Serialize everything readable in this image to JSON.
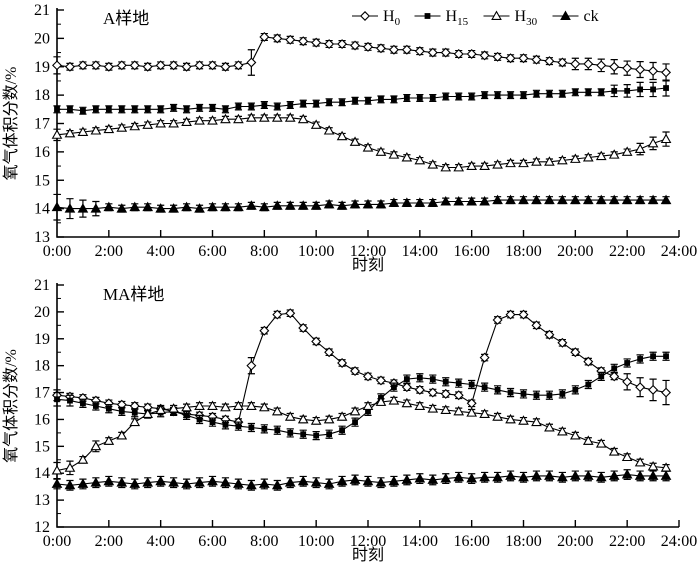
{
  "figure": {
    "background": "#ffffff",
    "line_color": "#000000"
  },
  "chart_data": [
    {
      "type": "line",
      "title": "A样地",
      "xlabel": "时刻",
      "ylabel": "氧气体积分数/%",
      "ylim": [
        13,
        21
      ],
      "yticks": [
        13,
        14,
        15,
        16,
        17,
        18,
        19,
        20,
        21
      ],
      "x_hours_range": [
        0,
        24
      ],
      "x_step_hours": 0.5,
      "x_tick_labels": [
        "0:00",
        "2:00",
        "4:00",
        "6:00",
        "8:00",
        "10:00",
        "12:00",
        "14:00",
        "16:00",
        "18:00",
        "20:00",
        "22:00",
        "24:00"
      ],
      "grid": false,
      "legend_position": "top-right",
      "legend": [
        {
          "label": "H",
          "sub": "0",
          "marker": "diamond-open"
        },
        {
          "label": "H",
          "sub": "15",
          "marker": "square-filled"
        },
        {
          "label": "H",
          "sub": "30",
          "marker": "triangle-open"
        },
        {
          "label": "ck",
          "sub": "",
          "marker": "triangle-filled"
        }
      ],
      "series": [
        {
          "name": "H0",
          "marker": "diamond-open",
          "err": 0.12,
          "err_overrides": {
            "0": 0.3,
            "15": 0.45,
            "40": 0.2,
            "41": 0.2,
            "42": 0.22,
            "43": 0.25,
            "44": 0.25,
            "45": 0.28,
            "46": 0.3,
            "47": 0.3
          },
          "values": [
            19.05,
            19.0,
            19.05,
            19.05,
            19.0,
            19.05,
            19.05,
            19.0,
            19.05,
            19.05,
            19.0,
            19.05,
            19.05,
            19.0,
            19.05,
            19.15,
            20.05,
            20.0,
            19.95,
            19.9,
            19.85,
            19.8,
            19.8,
            19.75,
            19.7,
            19.65,
            19.6,
            19.6,
            19.55,
            19.5,
            19.5,
            19.45,
            19.45,
            19.4,
            19.35,
            19.3,
            19.3,
            19.25,
            19.2,
            19.15,
            19.1,
            19.1,
            19.05,
            19.0,
            18.95,
            18.9,
            18.85,
            18.8
          ]
        },
        {
          "name": "H15",
          "marker": "square-filled",
          "err": 0.12,
          "err_overrides": {
            "43": 0.2,
            "44": 0.22,
            "45": 0.25,
            "46": 0.25,
            "47": 0.28
          },
          "values": [
            17.5,
            17.5,
            17.45,
            17.5,
            17.5,
            17.5,
            17.5,
            17.5,
            17.5,
            17.55,
            17.5,
            17.55,
            17.55,
            17.5,
            17.6,
            17.6,
            17.65,
            17.6,
            17.65,
            17.7,
            17.7,
            17.75,
            17.75,
            17.8,
            17.8,
            17.85,
            17.85,
            17.9,
            17.9,
            17.9,
            17.95,
            17.95,
            17.95,
            18.0,
            18.0,
            18.0,
            18.0,
            18.05,
            18.05,
            18.05,
            18.1,
            18.1,
            18.1,
            18.15,
            18.15,
            18.2,
            18.2,
            18.25
          ]
        },
        {
          "name": "H30",
          "marker": "triangle-open",
          "err": 0.1,
          "err_overrides": {
            "0": 0.2,
            "45": 0.2,
            "46": 0.22,
            "47": 0.25
          },
          "values": [
            16.6,
            16.65,
            16.7,
            16.75,
            16.8,
            16.85,
            16.9,
            16.95,
            17.0,
            17.0,
            17.05,
            17.1,
            17.1,
            17.15,
            17.15,
            17.2,
            17.2,
            17.2,
            17.2,
            17.15,
            16.95,
            16.75,
            16.55,
            16.35,
            16.15,
            16.0,
            15.9,
            15.8,
            15.7,
            15.55,
            15.45,
            15.45,
            15.5,
            15.5,
            15.55,
            15.6,
            15.6,
            15.65,
            15.65,
            15.7,
            15.75,
            15.8,
            15.85,
            15.9,
            16.0,
            16.1,
            16.3,
            16.45
          ]
        },
        {
          "name": "ck",
          "marker": "triangle-filled",
          "err": 0.12,
          "err_overrides": {
            "0": 0.45,
            "1": 0.35,
            "2": 0.3,
            "3": 0.25
          },
          "values": [
            14.05,
            14.0,
            14.0,
            14.0,
            14.05,
            14.0,
            14.05,
            14.05,
            14.0,
            14.0,
            14.05,
            14.0,
            14.05,
            14.05,
            14.05,
            14.1,
            14.05,
            14.1,
            14.1,
            14.1,
            14.1,
            14.15,
            14.1,
            14.15,
            14.15,
            14.15,
            14.2,
            14.2,
            14.2,
            14.2,
            14.25,
            14.25,
            14.25,
            14.25,
            14.3,
            14.3,
            14.3,
            14.3,
            14.3,
            14.3,
            14.3,
            14.3,
            14.3,
            14.3,
            14.3,
            14.3,
            14.3,
            14.3
          ]
        }
      ]
    },
    {
      "type": "line",
      "title": "MA样地",
      "xlabel": "时刻",
      "ylabel": "氧气体积分数/%",
      "ylim": [
        12,
        21
      ],
      "yticks": [
        12,
        13,
        14,
        15,
        16,
        17,
        18,
        19,
        20,
        21
      ],
      "x_hours_range": [
        0,
        24
      ],
      "x_step_hours": 0.5,
      "x_tick_labels": [
        "0:00",
        "2:00",
        "4:00",
        "6:00",
        "8:00",
        "10:00",
        "12:00",
        "14:00",
        "16:00",
        "18:00",
        "20:00",
        "22:00",
        "24:00"
      ],
      "grid": false,
      "legend": [],
      "series": [
        {
          "name": "H0",
          "marker": "diamond-open",
          "err": 0.12,
          "err_overrides": {
            "0": 0.2,
            "15": 0.3,
            "44": 0.3,
            "45": 0.35,
            "46": 0.4,
            "47": 0.45
          },
          "values": [
            16.9,
            16.85,
            16.8,
            16.7,
            16.6,
            16.55,
            16.5,
            16.45,
            16.4,
            16.3,
            16.2,
            16.15,
            16.1,
            16.0,
            15.9,
            18.0,
            19.3,
            19.9,
            19.95,
            19.4,
            18.9,
            18.5,
            18.1,
            17.8,
            17.6,
            17.45,
            17.35,
            17.2,
            17.1,
            17.0,
            16.95,
            16.9,
            16.6,
            18.3,
            19.7,
            19.9,
            19.9,
            19.5,
            19.15,
            18.85,
            18.5,
            18.15,
            17.8,
            17.6,
            17.4,
            17.2,
            17.1,
            17.0
          ]
        },
        {
          "name": "H15",
          "marker": "square-filled",
          "err": 0.15,
          "err_overrides": {
            "0": 0.25,
            "1": 0.2
          },
          "values": [
            16.75,
            16.7,
            16.6,
            16.5,
            16.4,
            16.3,
            16.25,
            16.2,
            16.25,
            16.3,
            16.15,
            16.0,
            15.9,
            15.8,
            15.75,
            15.7,
            15.65,
            15.6,
            15.5,
            15.45,
            15.4,
            15.45,
            15.6,
            15.9,
            16.3,
            16.8,
            17.2,
            17.5,
            17.55,
            17.5,
            17.4,
            17.35,
            17.3,
            17.2,
            17.1,
            17.0,
            16.95,
            16.9,
            16.9,
            16.95,
            17.1,
            17.3,
            17.6,
            17.9,
            18.1,
            18.25,
            18.35,
            18.35
          ]
        },
        {
          "name": "H30",
          "marker": "triangle-open",
          "err": 0.12,
          "err_overrides": {
            "0": 0.3,
            "1": 0.25,
            "3": 0.2
          },
          "values": [
            14.1,
            14.2,
            14.5,
            15.0,
            15.2,
            15.4,
            15.9,
            16.2,
            16.35,
            16.4,
            16.45,
            16.5,
            16.5,
            16.45,
            16.5,
            16.5,
            16.45,
            16.3,
            16.1,
            16.0,
            15.95,
            16.0,
            16.1,
            16.3,
            16.5,
            16.65,
            16.7,
            16.6,
            16.5,
            16.4,
            16.35,
            16.3,
            16.25,
            16.2,
            16.1,
            16.0,
            15.95,
            15.9,
            15.7,
            15.55,
            15.4,
            15.2,
            15.1,
            14.8,
            14.6,
            14.4,
            14.25,
            14.2
          ]
        },
        {
          "name": "ck",
          "marker": "triangle-filled",
          "err": 0.18,
          "err_overrides": {},
          "values": [
            13.6,
            13.55,
            13.6,
            13.65,
            13.7,
            13.65,
            13.6,
            13.65,
            13.7,
            13.65,
            13.6,
            13.65,
            13.7,
            13.65,
            13.6,
            13.55,
            13.6,
            13.55,
            13.65,
            13.7,
            13.65,
            13.6,
            13.7,
            13.75,
            13.7,
            13.65,
            13.7,
            13.75,
            13.8,
            13.75,
            13.8,
            13.85,
            13.8,
            13.85,
            13.85,
            13.9,
            13.85,
            13.9,
            13.9,
            13.85,
            13.9,
            13.9,
            13.85,
            13.9,
            13.95,
            13.9,
            13.9,
            13.9
          ]
        }
      ]
    }
  ]
}
